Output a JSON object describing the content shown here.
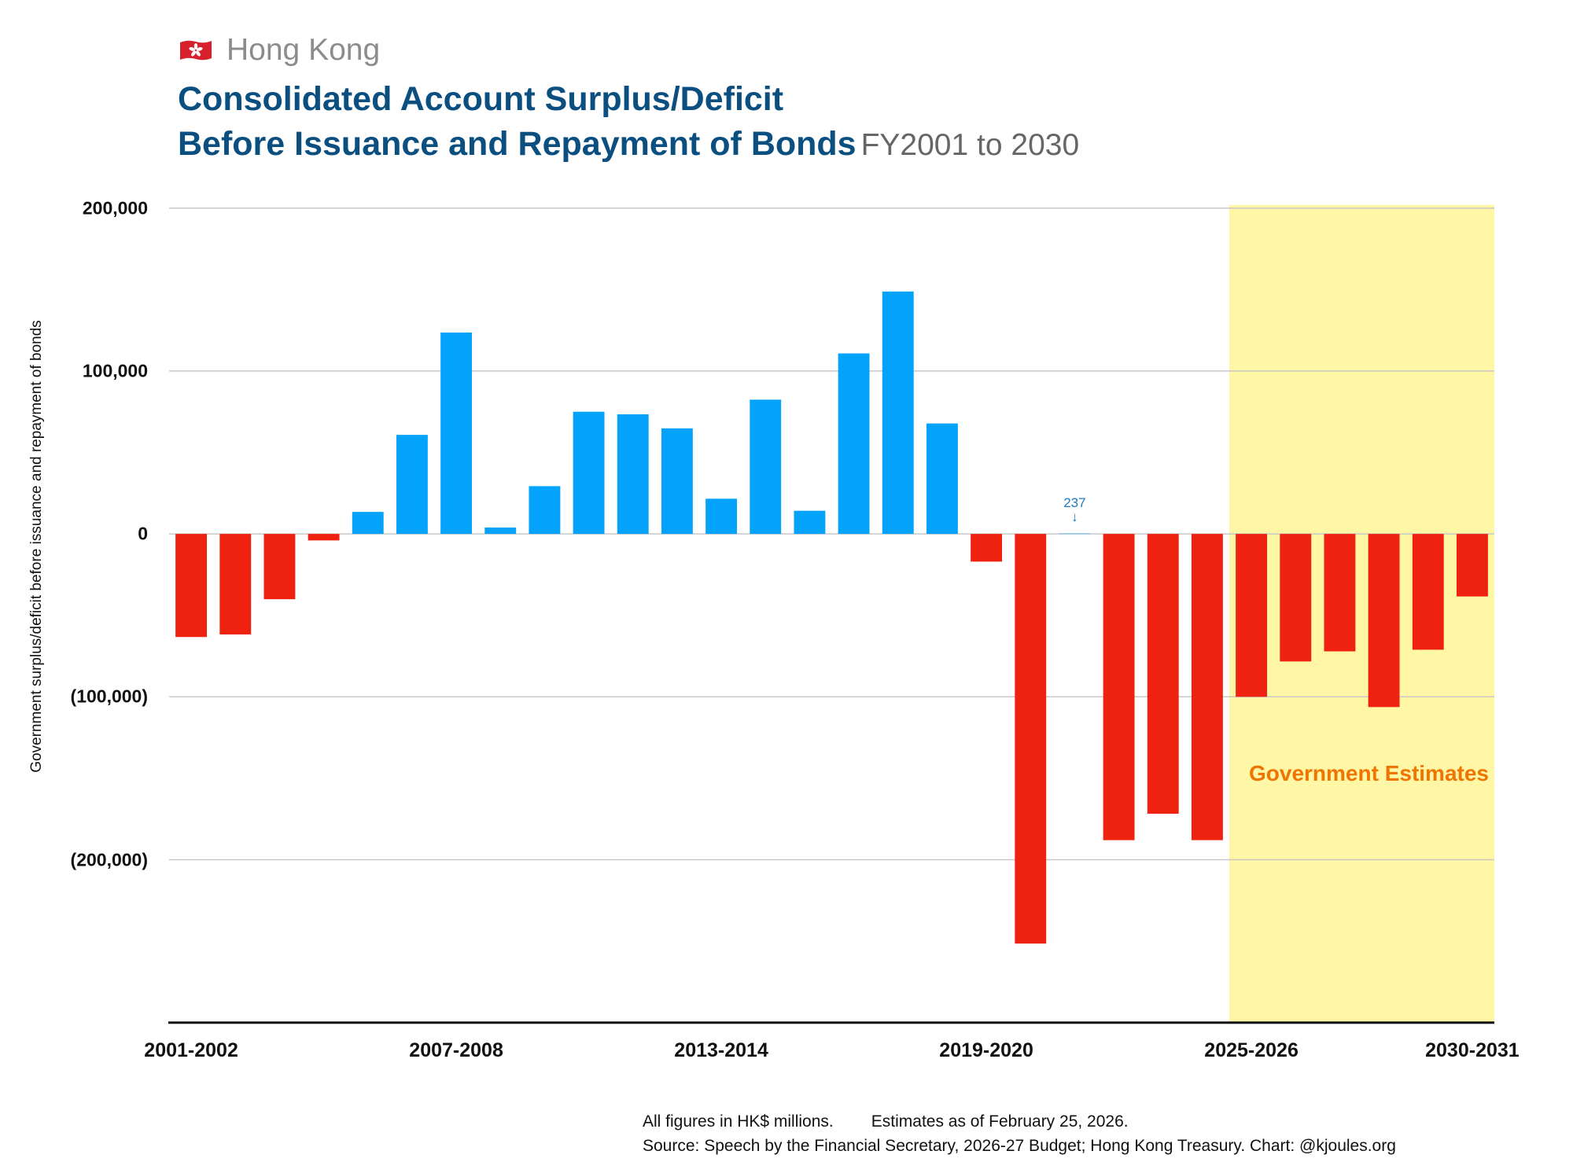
{
  "header": {
    "flag_icon": "hong-kong-flag-icon",
    "kicker": "Hong Kong",
    "title_line1": "Consolidated Account Surplus/Deficit",
    "title_line2": "Before Issuance and Repayment of Bonds",
    "title_suffix": "FY2001 to 2030"
  },
  "footer": {
    "units_note": "All figures in HK$ millions.",
    "estimates_note": "Estimates as of February 25, 2026.",
    "source": "Source: Speech by the Financial Secretary, 2026-27 Budget; Hong Kong Treasury. Chart: @kjoules.org"
  },
  "colors": {
    "surplus": "#03a3fc",
    "deficit": "#ee220e",
    "estimate_band": "#fff6a6",
    "estimate_label": "#f07400",
    "title": "#0b4f80",
    "annotation": "#1a7ac4",
    "gridline": "#c8c8c8"
  },
  "chart_data": {
    "type": "bar",
    "title": "Consolidated Account Surplus/Deficit Before Issuance and Repayment of Bonds",
    "subtitle": "FY2001 to 2030",
    "xlabel": "",
    "ylabel": "Government surplus/deficit before issuance and repayment of bonds",
    "units": "HK$ millions",
    "ylim": [
      -300000,
      200000
    ],
    "yticks": [
      200000,
      100000,
      0,
      -100000,
      -200000
    ],
    "ytick_labels": [
      "200,000",
      "100,000",
      "0",
      "(100,000)",
      "(200,000)"
    ],
    "grid": true,
    "categories": [
      "2001-2002",
      "2002-2003",
      "2003-2004",
      "2004-2005",
      "2005-2006",
      "2006-2007",
      "2007-2008",
      "2008-2009",
      "2009-2010",
      "2010-2011",
      "2011-2012",
      "2012-2013",
      "2013-2014",
      "2014-2015",
      "2015-2016",
      "2016-2017",
      "2017-2018",
      "2018-2019",
      "2019-2020",
      "2020-2021",
      "2021-2022",
      "2022-2023",
      "2023-2024",
      "2024-2025",
      "2025-2026",
      "2026-2027",
      "2027-2028",
      "2028-2029",
      "2029-2030",
      "2030-2031"
    ],
    "xtick_labels": [
      {
        "index": 0,
        "label": "2001-2002"
      },
      {
        "index": 6,
        "label": "2007-2008"
      },
      {
        "index": 12,
        "label": "2013-2014"
      },
      {
        "index": 18,
        "label": "2019-2020"
      },
      {
        "index": 24,
        "label": "2025-2026"
      },
      {
        "index": 29,
        "label": "2030-2031"
      }
    ],
    "values": [
      -63300,
      -61700,
      -40100,
      -4000,
      13500,
      60800,
      123600,
      3900,
      29300,
      75000,
      73400,
      64800,
      21600,
      82400,
      14200,
      110800,
      148800,
      67800,
      -17000,
      -251500,
      237,
      -188000,
      -171800,
      -188000,
      -100000,
      -78300,
      -72100,
      -106300,
      -71100,
      -38400
    ],
    "estimate_range": {
      "from_index": 24,
      "to_index": 29,
      "label": "Government Estimates"
    },
    "annotations": [
      {
        "index": 20,
        "text": "237",
        "arrow": "↓"
      }
    ]
  }
}
